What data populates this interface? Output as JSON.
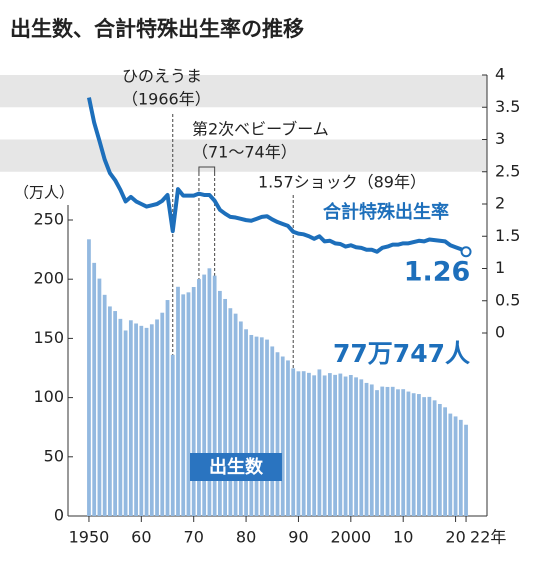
{
  "chart_data": {
    "type": "bar-line",
    "title": "出生数、合計特殊出生率の推移",
    "y_label": "（万人）",
    "x": [
      1950,
      1951,
      1952,
      1953,
      1954,
      1955,
      1956,
      1957,
      1958,
      1959,
      1960,
      1961,
      1962,
      1963,
      1964,
      1965,
      1966,
      1967,
      1968,
      1969,
      1970,
      1971,
      1972,
      1973,
      1974,
      1975,
      1976,
      1977,
      1978,
      1979,
      1980,
      1981,
      1982,
      1983,
      1984,
      1985,
      1986,
      1987,
      1988,
      1989,
      1990,
      1991,
      1992,
      1993,
      1994,
      1995,
      1996,
      1997,
      1998,
      1999,
      2000,
      2001,
      2002,
      2003,
      2004,
      2005,
      2006,
      2007,
      2008,
      2009,
      2010,
      2011,
      2012,
      2013,
      2014,
      2015,
      2016,
      2017,
      2018,
      2019,
      2020,
      2021,
      2022
    ],
    "series": [
      {
        "name": "出生数",
        "type": "bar",
        "axis": "y",
        "color": "#93b9e0",
        "values": [
          233.7,
          213.8,
          200.5,
          186.8,
          177.0,
          173.1,
          166.5,
          156.7,
          165.3,
          162.6,
          160.6,
          158.9,
          161.9,
          166.0,
          171.7,
          182.4,
          136.1,
          193.6,
          187.2,
          188.9,
          193.4,
          200.1,
          203.9,
          209.2,
          203.0,
          190.1,
          183.3,
          175.5,
          170.9,
          164.3,
          157.7,
          152.9,
          151.5,
          150.9,
          149.0,
          143.2,
          138.3,
          134.7,
          131.4,
          124.7,
          122.2,
          122.3,
          120.9,
          118.8,
          123.8,
          118.7,
          120.7,
          119.2,
          120.3,
          117.8,
          119.1,
          117.1,
          115.4,
          112.4,
          111.1,
          106.3,
          109.3,
          109.0,
          109.1,
          107.0,
          107.1,
          105.1,
          103.7,
          103.0,
          100.4,
          100.6,
          97.7,
          94.6,
          91.8,
          86.5,
          84.1,
          81.2,
          77.0747
        ],
        "value_labels": [
          null,
          null,
          null,
          null,
          null,
          null,
          null,
          null,
          null,
          null,
          null,
          null,
          null,
          null,
          null,
          null,
          null,
          null,
          null,
          null,
          null,
          null,
          null,
          null,
          null,
          null,
          null,
          null,
          null,
          null,
          null,
          null,
          null,
          null,
          null,
          null,
          null,
          null,
          null,
          null,
          null,
          null,
          null,
          null,
          null,
          null,
          null,
          null,
          null,
          null,
          null,
          null,
          null,
          null,
          null,
          null,
          null,
          null,
          null,
          null,
          null,
          null,
          null,
          null,
          null,
          null,
          null,
          null,
          null,
          null,
          null,
          null,
          "77万747人"
        ]
      },
      {
        "name": "合計特殊出生率",
        "type": "line",
        "axis": "y2",
        "color": "#1d6fbb",
        "values": [
          3.65,
          3.26,
          2.98,
          2.69,
          2.48,
          2.37,
          2.22,
          2.04,
          2.11,
          2.04,
          2.0,
          1.96,
          1.98,
          2.0,
          2.05,
          2.14,
          1.58,
          2.23,
          2.13,
          2.13,
          2.13,
          2.16,
          2.14,
          2.14,
          2.05,
          1.91,
          1.85,
          1.8,
          1.79,
          1.77,
          1.75,
          1.74,
          1.77,
          1.8,
          1.81,
          1.76,
          1.72,
          1.69,
          1.66,
          1.57,
          1.54,
          1.53,
          1.5,
          1.46,
          1.5,
          1.42,
          1.43,
          1.39,
          1.38,
          1.34,
          1.36,
          1.33,
          1.32,
          1.29,
          1.29,
          1.26,
          1.32,
          1.34,
          1.37,
          1.37,
          1.39,
          1.39,
          1.41,
          1.43,
          1.42,
          1.45,
          1.44,
          1.43,
          1.42,
          1.36,
          1.33,
          1.3,
          1.26
        ]
      }
    ],
    "xlim": [
      1946,
      2026
    ],
    "xticks": [
      1950,
      {
        "value": 1960,
        "label": "60"
      },
      {
        "value": 1970,
        "label": "70"
      },
      {
        "value": 1980,
        "label": "80"
      },
      {
        "value": 1990,
        "label": "90"
      },
      2000,
      {
        "value": 2010,
        "label": "10"
      },
      {
        "value": 2020,
        "label": "20"
      },
      {
        "value": 2022,
        "label": "22年"
      }
    ],
    "ylim": [
      0,
      250
    ],
    "yticks": [
      0,
      50,
      100,
      150,
      200,
      250
    ],
    "y2lim": [
      0,
      4
    ],
    "y2ticks": [
      0,
      0.5,
      1,
      1.5,
      2,
      2.5,
      3,
      3.5,
      4
    ],
    "annotations": [
      {
        "text": "ひのえうま",
        "note": "（1966年）",
        "x": [
          1966
        ]
      },
      {
        "text": "第2次ベビーブーム",
        "note": "（71～74年）",
        "x": [
          1971,
          1974
        ]
      },
      {
        "text": "1.57ショック（89年）",
        "x": [
          1989
        ]
      }
    ]
  }
}
